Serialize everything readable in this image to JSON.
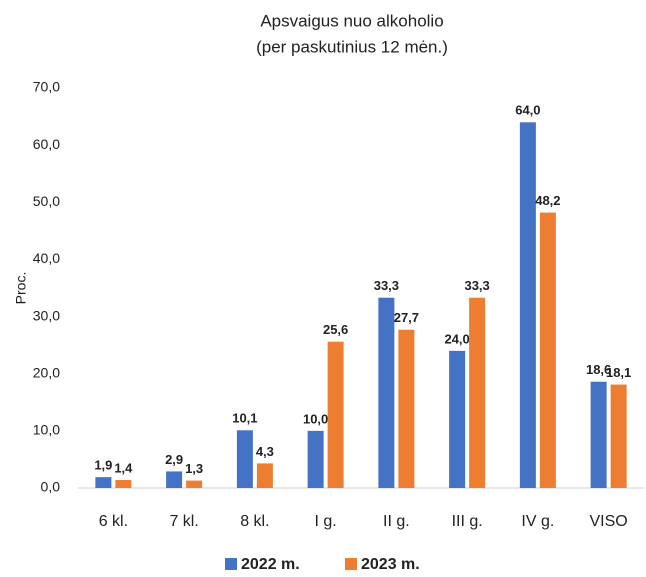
{
  "chart_data": {
    "type": "bar",
    "title": [
      "Apsvaigus nuo alkoholio",
      "(per paskutinius 12 mėn.)"
    ],
    "y_label": "Proc.",
    "categories": [
      "6 kl.",
      "7 kl.",
      "8 kl.",
      "I g.",
      "II g.",
      "III g.",
      "IV g.",
      "VISO"
    ],
    "series": [
      {
        "name": "2022 m.",
        "color": "#4472c4",
        "values": [
          1.9,
          2.9,
          10.1,
          10.0,
          33.3,
          24.0,
          64.0,
          18.6
        ],
        "value_labels": [
          "1,9",
          "2,9",
          "10,1",
          "10,0",
          "33,3",
          "24,0",
          "64,0",
          "18,6"
        ]
      },
      {
        "name": "2023 m.",
        "color": "#ed7d31",
        "values": [
          1.4,
          1.3,
          4.3,
          25.6,
          27.7,
          33.3,
          48.2,
          18.1
        ],
        "value_labels": [
          "1,4",
          "1,3",
          "4,3",
          "25,6",
          "27,7",
          "33,3",
          "48,2",
          "18,1"
        ]
      }
    ],
    "ylim": [
      0,
      70
    ],
    "yticks": [
      {
        "value": 0,
        "label": "0,0"
      },
      {
        "value": 10,
        "label": "10,0"
      },
      {
        "value": 20,
        "label": "20,0"
      },
      {
        "value": 30,
        "label": "30,0"
      },
      {
        "value": 40,
        "label": "40,0"
      },
      {
        "value": 50,
        "label": "50,0"
      },
      {
        "value": 60,
        "label": "60,0"
      },
      {
        "value": 70,
        "label": "70,0"
      }
    ],
    "grid": false,
    "legend": "bottom"
  }
}
